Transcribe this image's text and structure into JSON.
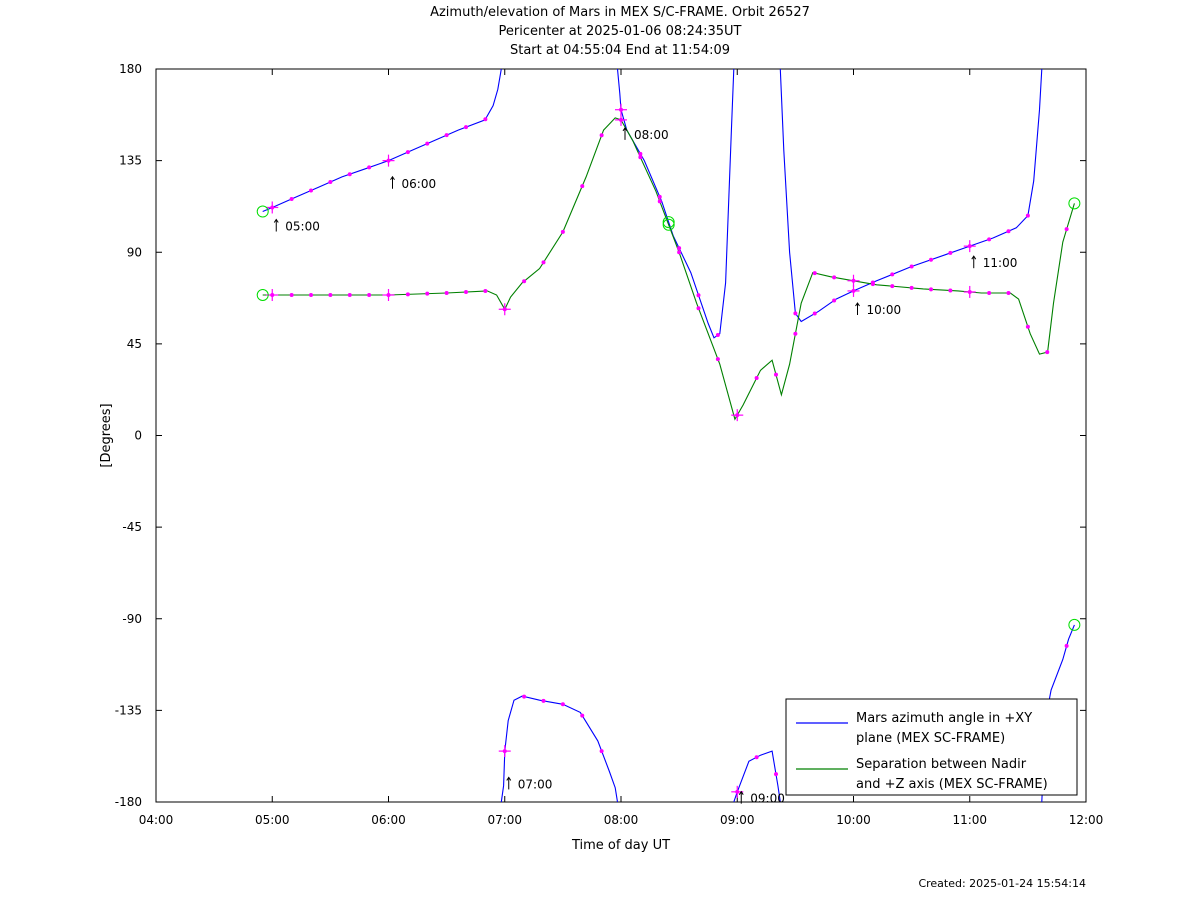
{
  "header": {
    "title": "Azimuth/elevation of Mars in MEX S/C-FRAME.  Orbit 26527",
    "subtitle1": "Pericenter at 2025-01-06 08:24:35UT",
    "subtitle2": "Start at 04:55:04 End at 11:54:09"
  },
  "footer": {
    "created": "Created: 2025-01-24 15:54:14"
  },
  "colors": {
    "azimuth": "#0000ff",
    "separation": "#008000",
    "markers": "#ff00ff",
    "endpoints": "#00dd00"
  },
  "chart_data": {
    "type": "line",
    "xlabel": "Time of day UT",
    "ylabel": "[Degrees]",
    "xlim": [
      4.0,
      12.0
    ],
    "ylim": [
      -180,
      180
    ],
    "x_ticks": [
      "04:00",
      "05:00",
      "06:00",
      "07:00",
      "08:00",
      "09:00",
      "10:00",
      "11:00",
      "12:00"
    ],
    "y_ticks": [
      180,
      135,
      90,
      45,
      0,
      -45,
      -90,
      -135,
      -180
    ],
    "hour_annotations": [
      {
        "x": 5.0,
        "y": 110,
        "label": "05:00"
      },
      {
        "x": 6.0,
        "y": 131,
        "label": "06:00"
      },
      {
        "x": 7.0,
        "y": -164,
        "label": "07:00"
      },
      {
        "x": 8.0,
        "y": 155,
        "label": "08:00"
      },
      {
        "x": 9.0,
        "y": -171,
        "label": "09:00"
      },
      {
        "x": 10.0,
        "y": 69,
        "label": "10:00"
      },
      {
        "x": 11.0,
        "y": 92,
        "label": "11:00"
      }
    ],
    "series": [
      {
        "name": "Mars azimuth angle in +XY plane (MEX SC-FRAME)",
        "legend_lines": [
          "Mars azimuth angle in +XY",
          "plane (MEX SC-FRAME)"
        ],
        "segments": [
          [
            [
              4.918,
              110
            ],
            [
              5.0,
              112
            ],
            [
              5.2,
              117
            ],
            [
              5.4,
              122
            ],
            [
              5.6,
              127
            ],
            [
              5.8,
              131
            ],
            [
              6.0,
              135
            ],
            [
              6.2,
              140
            ],
            [
              6.4,
              145
            ],
            [
              6.6,
              150
            ],
            [
              6.83,
              155
            ],
            [
              6.9,
              162
            ],
            [
              6.94,
              170
            ],
            [
              6.97,
              180
            ]
          ],
          [
            [
              6.97,
              -180
            ],
            [
              6.99,
              -172
            ],
            [
              7.0,
              -155
            ],
            [
              7.03,
              -140
            ],
            [
              7.08,
              -130
            ],
            [
              7.15,
              -128
            ],
            [
              7.3,
              -130
            ],
            [
              7.5,
              -132
            ],
            [
              7.65,
              -136
            ],
            [
              7.8,
              -150
            ],
            [
              7.9,
              -165
            ],
            [
              7.95,
              -173
            ],
            [
              7.97,
              -180
            ]
          ],
          [
            [
              7.97,
              180
            ],
            [
              7.99,
              168
            ],
            [
              8.0,
              160
            ],
            [
              8.05,
              150
            ],
            [
              8.2,
              135
            ],
            [
              8.35,
              115
            ],
            [
              8.45,
              98
            ],
            [
              8.6,
              80
            ],
            [
              8.75,
              55
            ],
            [
              8.8,
              48
            ],
            [
              8.85,
              50
            ],
            [
              8.9,
              75
            ],
            [
              8.95,
              150
            ],
            [
              8.97,
              180
            ]
          ],
          [
            [
              8.97,
              -180
            ],
            [
              9.0,
              -175
            ],
            [
              9.1,
              -160
            ],
            [
              9.2,
              -157
            ],
            [
              9.3,
              -155
            ],
            [
              9.35,
              -172
            ],
            [
              9.37,
              -180
            ]
          ],
          [
            [
              9.37,
              180
            ],
            [
              9.4,
              140
            ],
            [
              9.45,
              90
            ],
            [
              9.5,
              60
            ],
            [
              9.55,
              56
            ],
            [
              9.7,
              61
            ],
            [
              9.85,
              67
            ],
            [
              10.0,
              71
            ],
            [
              10.2,
              76
            ],
            [
              10.5,
              83
            ],
            [
              10.8,
              89
            ],
            [
              11.0,
              93
            ],
            [
              11.2,
              97
            ],
            [
              11.4,
              102
            ],
            [
              11.5,
              108
            ],
            [
              11.55,
              125
            ],
            [
              11.6,
              160
            ],
            [
              11.62,
              180
            ]
          ],
          [
            [
              11.62,
              -180
            ],
            [
              11.65,
              -140
            ],
            [
              11.7,
              -125
            ],
            [
              11.8,
              -110
            ],
            [
              11.85,
              -100
            ],
            [
              11.9,
              -93
            ]
          ]
        ]
      },
      {
        "name": "Separation between Nadir and +Z axis (MEX SC-FRAME)",
        "legend_lines": [
          "Separation between Nadir",
          "and +Z axis (MEX SC-FRAME)"
        ],
        "segments": [
          [
            [
              4.918,
              69
            ],
            [
              5.5,
              69
            ],
            [
              6.0,
              69
            ],
            [
              6.5,
              70
            ],
            [
              6.85,
              71
            ],
            [
              6.93,
              69
            ],
            [
              6.98,
              64
            ],
            [
              7.0,
              62
            ],
            [
              7.05,
              68
            ],
            [
              7.15,
              75
            ],
            [
              7.3,
              82
            ],
            [
              7.5,
              100
            ],
            [
              7.7,
              127
            ],
            [
              7.85,
              150
            ],
            [
              7.95,
              156
            ],
            [
              8.0,
              155
            ],
            [
              8.1,
              145
            ],
            [
              8.3,
              120
            ],
            [
              8.5,
              90
            ],
            [
              8.65,
              65
            ],
            [
              8.85,
              35
            ],
            [
              8.98,
              8
            ],
            [
              9.05,
              15
            ],
            [
              9.2,
              32
            ],
            [
              9.3,
              37
            ],
            [
              9.38,
              20
            ],
            [
              9.45,
              35
            ],
            [
              9.55,
              65
            ],
            [
              9.65,
              80
            ],
            [
              9.8,
              78
            ],
            [
              10.0,
              76
            ],
            [
              10.2,
              74
            ],
            [
              10.6,
              72
            ],
            [
              10.9,
              71
            ],
            [
              11.1,
              70
            ],
            [
              11.35,
              70
            ],
            [
              11.42,
              67
            ],
            [
              11.52,
              50
            ],
            [
              11.6,
              40
            ],
            [
              11.67,
              41
            ],
            [
              11.72,
              65
            ],
            [
              11.8,
              95
            ],
            [
              11.9,
              114
            ]
          ]
        ]
      }
    ]
  }
}
